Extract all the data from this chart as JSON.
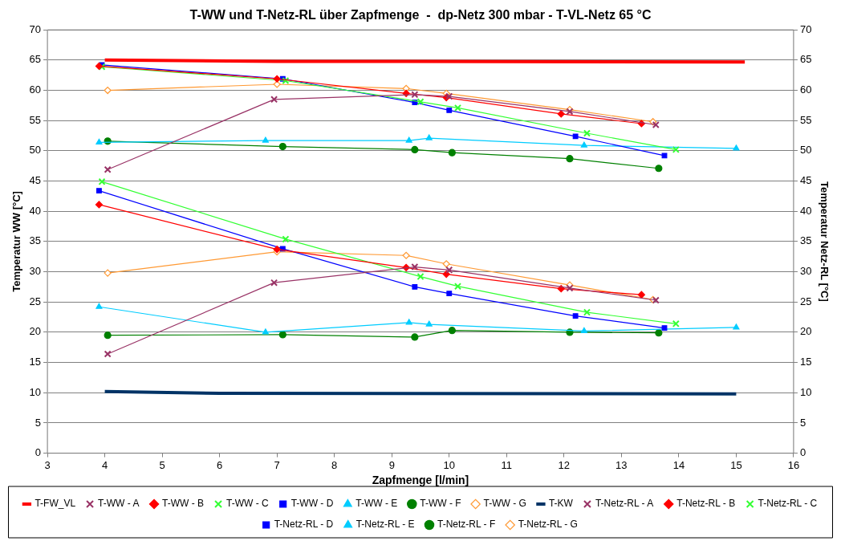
{
  "chart_data": {
    "type": "line",
    "title": "T-WW und T-Netz-RL über Zapfmenge  -  dp-Netz 300 mbar - T-VL-Netz 65 °C",
    "xlabel": "Zapfmenge [l/min]",
    "ylabel": "Temperatur WW [°C]",
    "y2label": "Temperatur Netz-RL [°C]",
    "xlim": [
      3,
      16
    ],
    "xticks": [
      3,
      4,
      5,
      6,
      7,
      8,
      9,
      10,
      11,
      12,
      13,
      14,
      15,
      16
    ],
    "ylim": [
      0,
      70
    ],
    "yticks": [
      0,
      5,
      10,
      15,
      20,
      25,
      30,
      35,
      40,
      45,
      50,
      55,
      60,
      65,
      70
    ],
    "y2lim": [
      0,
      70
    ],
    "y2ticks": [
      0,
      5,
      10,
      15,
      20,
      25,
      30,
      35,
      40,
      45,
      50,
      55,
      60,
      65,
      70
    ],
    "grid": "y",
    "legend": "bottom",
    "series": [
      {
        "name": "T-FW_VL",
        "color": "#ff0000",
        "marker": "none",
        "x": [
          4,
          7,
          15.15
        ],
        "values": [
          65,
          64.8,
          64.7
        ]
      },
      {
        "name": "T-WW - A",
        "color": "#993366",
        "marker": "cross",
        "x": [
          4.05,
          6.95,
          9.4,
          10,
          12.1,
          13.6
        ],
        "values": [
          46.9,
          58.5,
          59.3,
          59,
          56.5,
          54.3
        ]
      },
      {
        "name": "T-WW - B",
        "color": "#ff0000",
        "marker": "diamond",
        "x": [
          3.9,
          7,
          9.25,
          9.95,
          11.95,
          13.35
        ],
        "values": [
          64,
          61.9,
          59.5,
          58.8,
          56.1,
          54.5
        ]
      },
      {
        "name": "T-WW - C",
        "color": "#33ff33",
        "marker": "cross",
        "x": [
          3.95,
          7.15,
          9.5,
          10.15,
          12.4,
          13.95
        ],
        "values": [
          63.9,
          61.6,
          58.1,
          57.1,
          52.9,
          50.2
        ]
      },
      {
        "name": "T-WW - D",
        "color": "#0000ff",
        "marker": "square",
        "x": [
          3.95,
          7.1,
          9.4,
          10,
          12.2,
          13.75
        ],
        "values": [
          64.2,
          61.9,
          58,
          56.7,
          52.4,
          49.2
        ]
      },
      {
        "name": "T-WW - E",
        "color": "#00ccff",
        "marker": "triangle",
        "x": [
          3.9,
          6.8,
          9.3,
          9.65,
          12.35,
          15
        ],
        "values": [
          51.4,
          51.7,
          51.7,
          52.1,
          50.9,
          50.4
        ]
      },
      {
        "name": "T-WW - F",
        "color": "#008000",
        "marker": "circle",
        "x": [
          4.05,
          7.1,
          9.4,
          10.05,
          12.1,
          13.65
        ],
        "values": [
          51.6,
          50.7,
          50.2,
          49.7,
          48.7,
          47.1
        ]
      },
      {
        "name": "T-WW - G",
        "color": "#ff9933",
        "marker": "diamond-open",
        "x": [
          4.05,
          7,
          9.25,
          9.95,
          12.1,
          13.55
        ],
        "values": [
          60,
          61,
          60.3,
          59.5,
          56.8,
          54.8
        ]
      },
      {
        "name": "T-KW",
        "color": "#003366",
        "marker": "none",
        "x": [
          4,
          6,
          15
        ],
        "values": [
          10.2,
          9.9,
          9.8
        ]
      },
      {
        "name": "T-Netz-RL - A",
        "color": "#993366",
        "marker": "cross",
        "x": [
          4.05,
          6.95,
          9.4,
          10,
          12.1,
          13.6
        ],
        "values": [
          16.4,
          28.2,
          30.8,
          30.3,
          27.3,
          25.3
        ]
      },
      {
        "name": "T-Netz-RL - B",
        "color": "#ff0000",
        "marker": "diamond",
        "x": [
          3.9,
          7,
          9.25,
          9.95,
          11.95,
          13.35
        ],
        "values": [
          41.1,
          33.7,
          30.7,
          29.6,
          27.2,
          26.2
        ]
      },
      {
        "name": "T-Netz-RL - C",
        "color": "#33ff33",
        "marker": "cross",
        "x": [
          3.95,
          7.15,
          9.5,
          10.15,
          12.4,
          13.95
        ],
        "values": [
          44.9,
          35.4,
          29.2,
          27.6,
          23.3,
          21.4
        ]
      },
      {
        "name": "T-Netz-RL - D",
        "color": "#0000ff",
        "marker": "square",
        "x": [
          3.9,
          7.1,
          9.4,
          10,
          12.2,
          13.75
        ],
        "values": [
          43.4,
          33.8,
          27.5,
          26.4,
          22.7,
          20.7
        ]
      },
      {
        "name": "T-Netz-RL - E",
        "color": "#00ccff",
        "marker": "triangle",
        "x": [
          3.9,
          6.8,
          9.3,
          9.65,
          12.35,
          15
        ],
        "values": [
          24.2,
          20,
          21.6,
          21.3,
          20.2,
          20.8
        ]
      },
      {
        "name": "T-Netz-RL - F",
        "color": "#008000",
        "marker": "circle",
        "x": [
          4.05,
          7.1,
          9.4,
          10.05,
          12.1,
          13.65
        ],
        "values": [
          19.5,
          19.6,
          19.2,
          20.3,
          20,
          19.9
        ]
      },
      {
        "name": "T-Netz-RL - G",
        "color": "#ff9933",
        "marker": "diamond-open",
        "x": [
          4.05,
          7,
          9.25,
          9.95,
          12.1,
          13.55
        ],
        "values": [
          29.8,
          33.3,
          32.7,
          31.3,
          27.8,
          25.4
        ]
      }
    ]
  }
}
